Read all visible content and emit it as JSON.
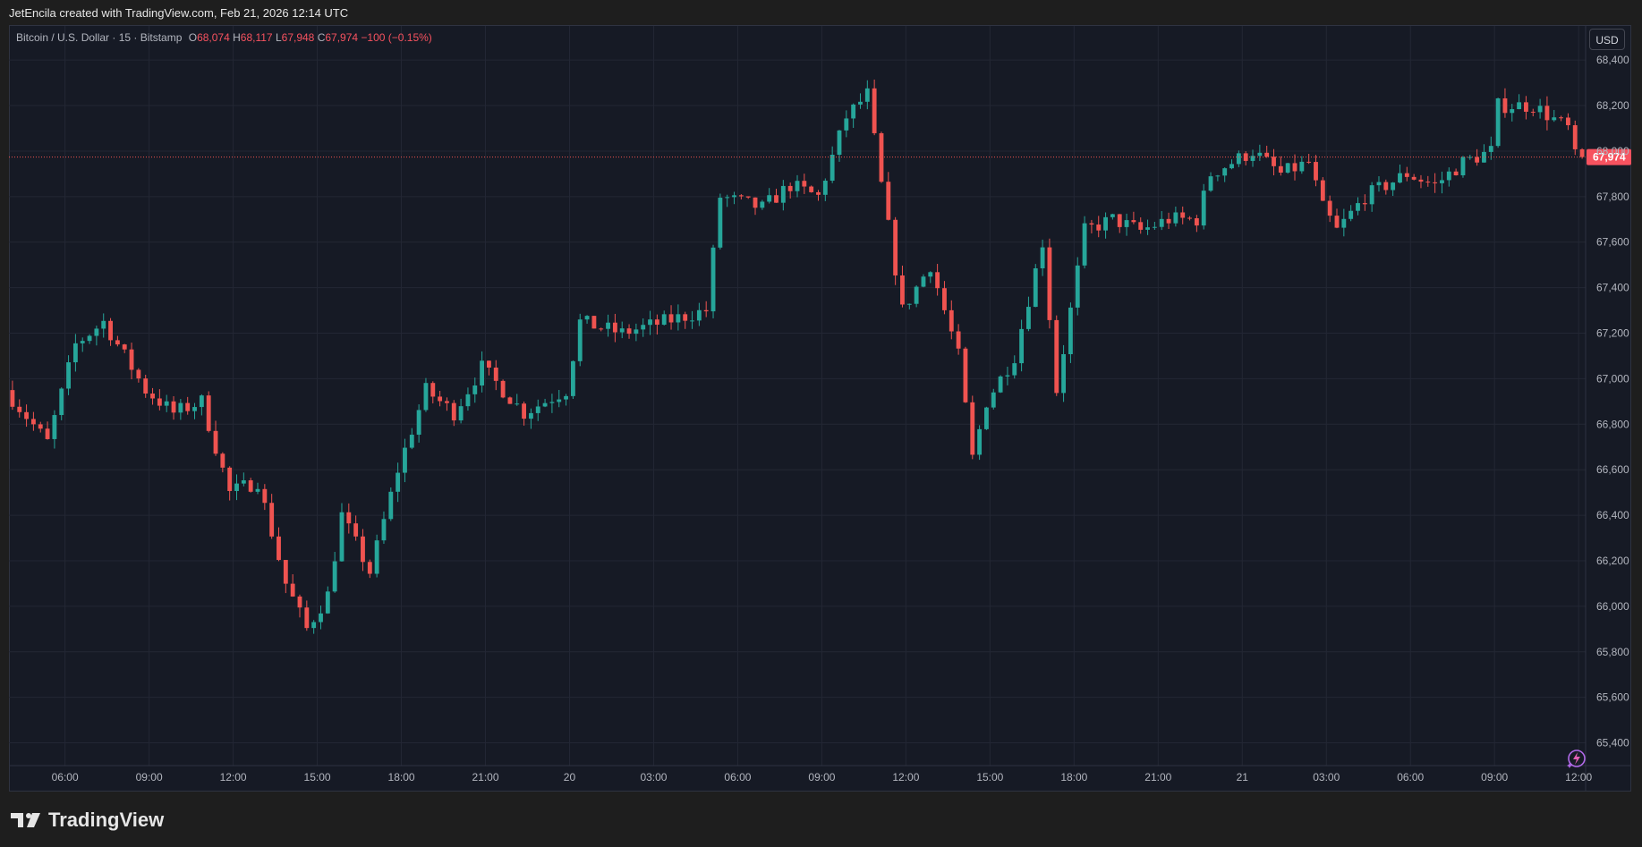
{
  "header": {
    "credit": "JetEncila created with TradingView.com, Feb 21, 2026 12:14 UTC"
  },
  "legend": {
    "symbol": "Bitcoin / U.S. Dollar · 15 · Bitstamp",
    "o_label": "O",
    "o_value": "68,074",
    "h_label": "H",
    "h_value": "68,117",
    "l_label": "L",
    "l_value": "67,948",
    "c_label": "C",
    "c_value": "67,974",
    "change": "−100 (−0.15%)"
  },
  "currency_button": "USD",
  "brand": {
    "name": "TradingView",
    "logo_icon": "tradingview-logo-icon"
  },
  "colors": {
    "up": "#26a69a",
    "down": "#ef5350",
    "background": "#161a25",
    "grid": "#232734",
    "axis_text": "#b2b5be",
    "last_price_bg": "#f7525f"
  },
  "chart_data": {
    "type": "candlestick",
    "title": "Bitcoin / U.S. Dollar · 15 · Bitstamp",
    "interval": "15",
    "exchange": "Bitstamp",
    "ylim": [
      65300,
      68550
    ],
    "y_ticks": [
      65400,
      65600,
      65800,
      66000,
      66200,
      66400,
      66600,
      66800,
      67000,
      67200,
      67400,
      67600,
      67800,
      68000,
      68200,
      68400
    ],
    "y_tick_labels": [
      "65,400",
      "65,600",
      "65,800",
      "66,000",
      "66,200",
      "66,400",
      "66,600",
      "66,800",
      "67,000",
      "67,200",
      "67,400",
      "67,600",
      "67,800",
      "68,000",
      "68,200",
      "68,400"
    ],
    "x_range": [
      "2026-02-19 04:00",
      "2026-02-21 12:15"
    ],
    "x_ticks": [
      "2026-02-19 06:00",
      "2026-02-19 09:00",
      "2026-02-19 12:00",
      "2026-02-19 15:00",
      "2026-02-19 18:00",
      "2026-02-19 21:00",
      "2026-02-20 00:00",
      "2026-02-20 03:00",
      "2026-02-20 06:00",
      "2026-02-20 09:00",
      "2026-02-20 12:00",
      "2026-02-20 15:00",
      "2026-02-20 18:00",
      "2026-02-20 21:00",
      "2026-02-21 00:00",
      "2026-02-21 03:00",
      "2026-02-21 06:00",
      "2026-02-21 09:00",
      "2026-02-21 12:00"
    ],
    "x_tick_labels": [
      "06:00",
      "09:00",
      "12:00",
      "15:00",
      "18:00",
      "21:00",
      "20",
      "03:00",
      "06:00",
      "09:00",
      "12:00",
      "15:00",
      "18:00",
      "21:00",
      "21",
      "03:00",
      "06:00",
      "09:00",
      "12:00"
    ],
    "last_price": 67974,
    "last_price_label": "67,974",
    "grid": true,
    "legend_position": "top-left",
    "waypoints_t": [
      "2026-02-19 04:00",
      "2026-02-19 05:30",
      "2026-02-19 06:30",
      "2026-02-19 07:30",
      "2026-02-19 09:00",
      "2026-02-19 10:00",
      "2026-02-19 11:00",
      "2026-02-19 12:00",
      "2026-02-19 13:00",
      "2026-02-19 14:00",
      "2026-02-19 14:45",
      "2026-02-19 15:30",
      "2026-02-19 16:00",
      "2026-02-19 17:00",
      "2026-02-19 18:00",
      "2026-02-19 19:00",
      "2026-02-19 20:00",
      "2026-02-19 21:00",
      "2026-02-19 22:30",
      "2026-02-20 00:00",
      "2026-02-20 00:30",
      "2026-02-20 02:00",
      "2026-02-20 03:30",
      "2026-02-20 05:00",
      "2026-02-20 05:30",
      "2026-02-20 07:00",
      "2026-02-20 08:00",
      "2026-02-20 09:00",
      "2026-02-20 10:00",
      "2026-02-20 10:45",
      "2026-02-20 11:15",
      "2026-02-20 12:00",
      "2026-02-20 13:00",
      "2026-02-20 14:00",
      "2026-02-20 14:30",
      "2026-02-20 15:00",
      "2026-02-20 16:00",
      "2026-02-20 17:00",
      "2026-02-20 17:30",
      "2026-02-20 18:30",
      "2026-02-20 19:30",
      "2026-02-20 20:30",
      "2026-02-20 21:30",
      "2026-02-20 22:30",
      "2026-02-20 23:00",
      "2026-02-21 00:30",
      "2026-02-21 01:30",
      "2026-02-21 02:30",
      "2026-02-21 03:00",
      "2026-02-21 03:30",
      "2026-02-21 04:30",
      "2026-02-21 06:00",
      "2026-02-21 07:00",
      "2026-02-21 08:00",
      "2026-02-21 09:00",
      "2026-02-21 09:15",
      "2026-02-21 10:30",
      "2026-02-21 11:45",
      "2026-02-21 12:00"
    ],
    "waypoints_price": [
      66950,
      66720,
      67150,
      67250,
      66950,
      66850,
      66900,
      66500,
      66550,
      66100,
      65900,
      66050,
      66400,
      66150,
      66600,
      66950,
      66850,
      67050,
      66850,
      66950,
      67250,
      67200,
      67250,
      67300,
      67800,
      67750,
      67850,
      67800,
      68150,
      68250,
      67850,
      67300,
      67500,
      67100,
      66650,
      66900,
      67100,
      67600,
      66950,
      67650,
      67700,
      67650,
      67700,
      67700,
      67900,
      68000,
      67900,
      67950,
      67750,
      67650,
      67800,
      67900,
      67850,
      67950,
      68000,
      68200,
      68200,
      68100,
      67974
    ],
    "seed": 7
  }
}
